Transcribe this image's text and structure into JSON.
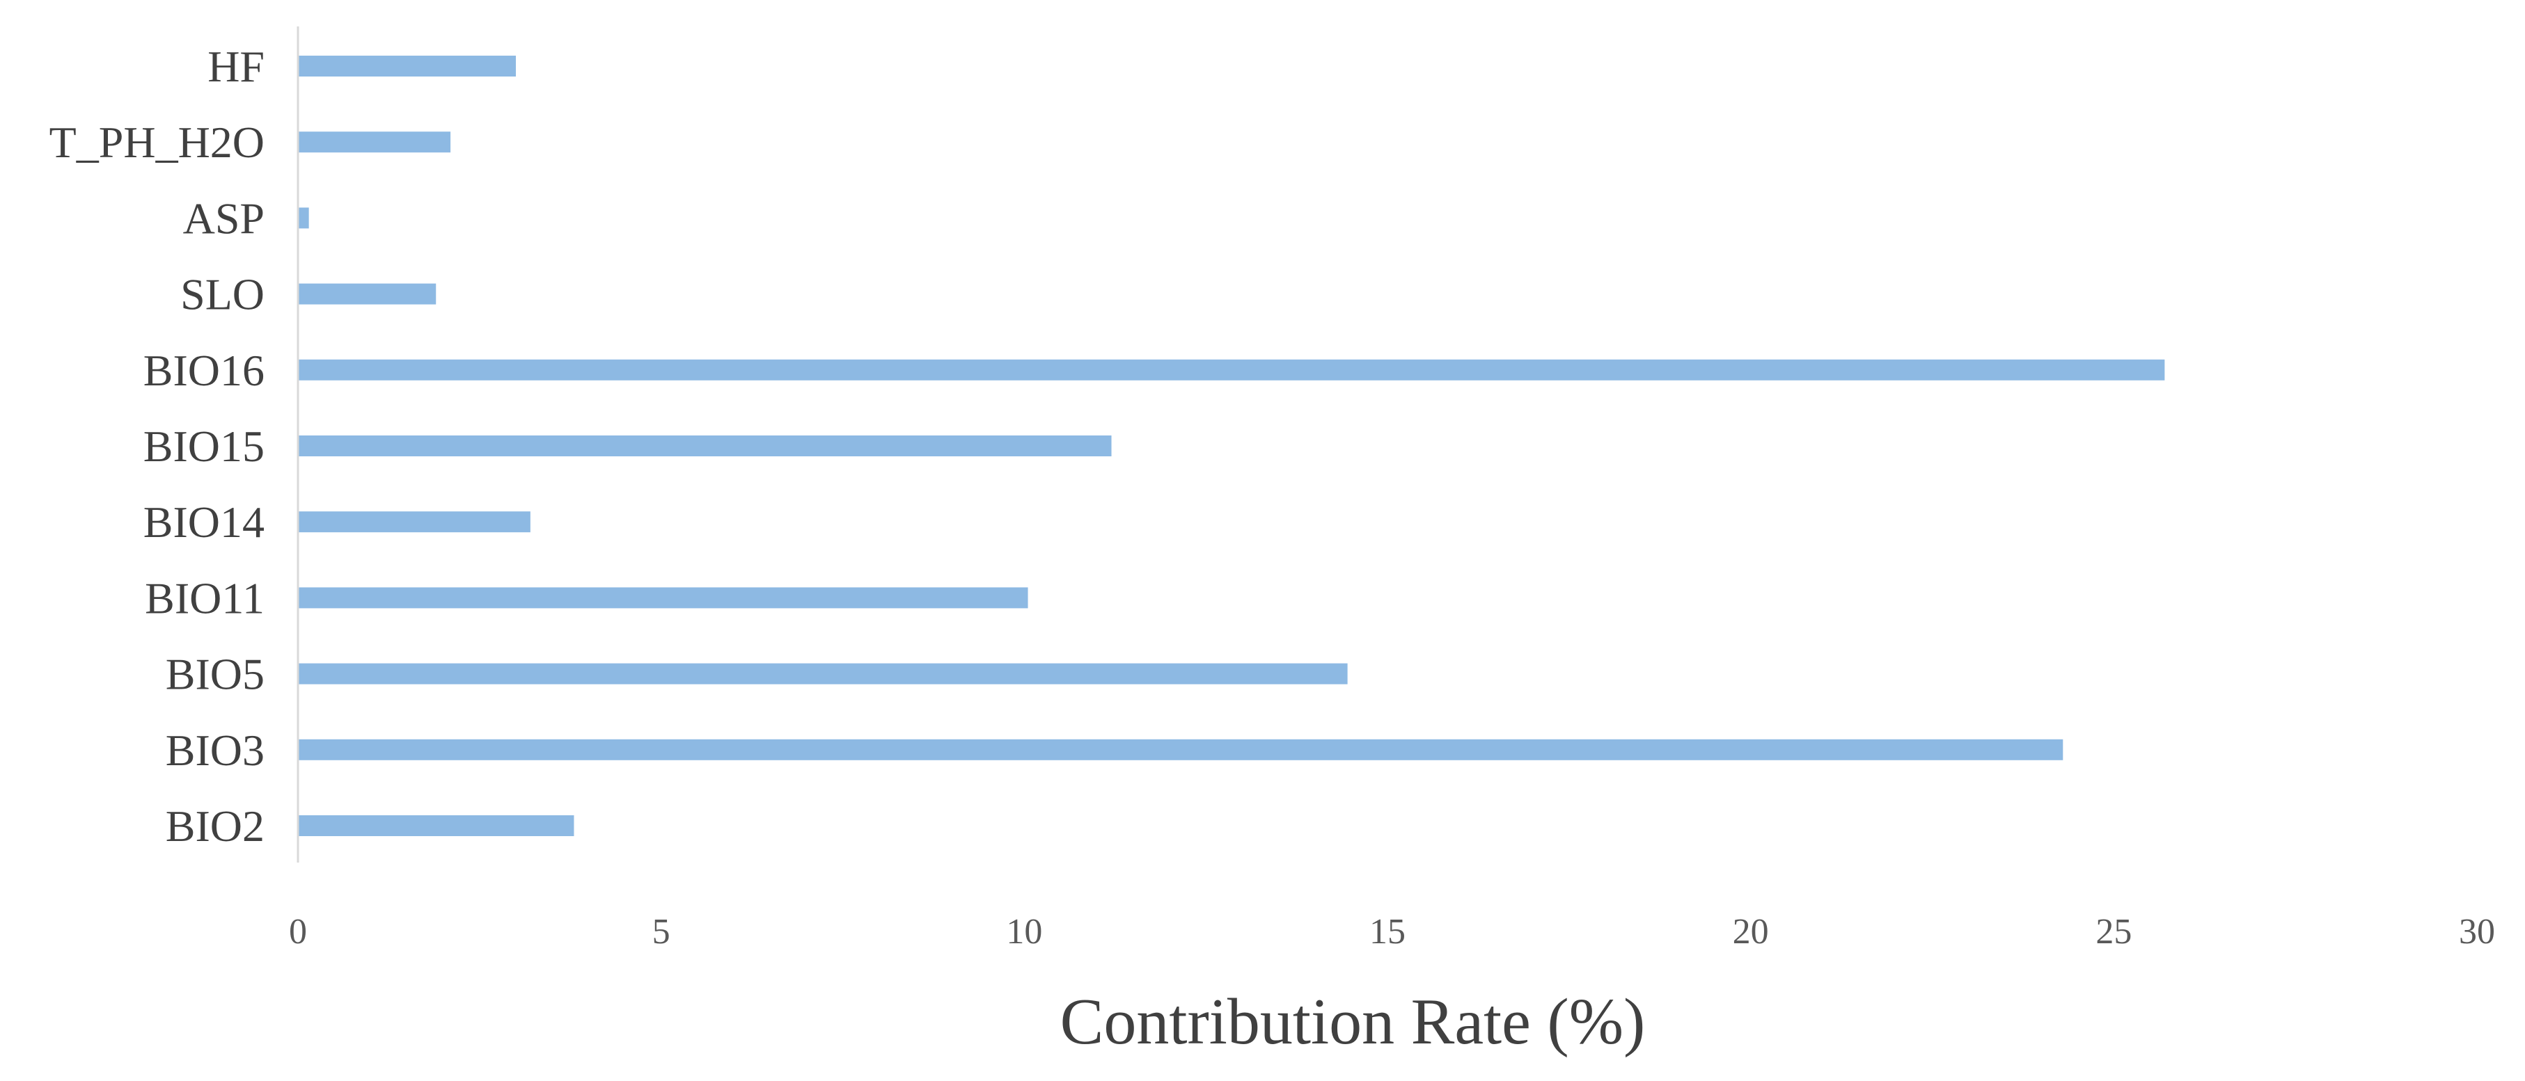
{
  "chart_data": {
    "type": "bar",
    "orientation": "horizontal",
    "title": "",
    "xlabel": "Contribution Rate (%)",
    "ylabel": "",
    "categories": [
      "HF",
      "T_PH_H2O",
      "ASP",
      "SLO",
      "BIO16",
      "BIO15",
      "BIO14",
      "BIO11",
      "BIO5",
      "BIO3",
      "BIO2"
    ],
    "values": [
      3.0,
      2.1,
      0.15,
      1.9,
      25.7,
      11.2,
      3.2,
      10.05,
      14.45,
      24.3,
      3.8
    ],
    "xlim": [
      0,
      30
    ],
    "xticks": [
      "0",
      "5",
      "10",
      "15",
      "20",
      "25",
      "30"
    ],
    "grid": false,
    "legend": "none",
    "bar_color": "#8DB9E3",
    "axis_color": "#D9D9D9"
  }
}
